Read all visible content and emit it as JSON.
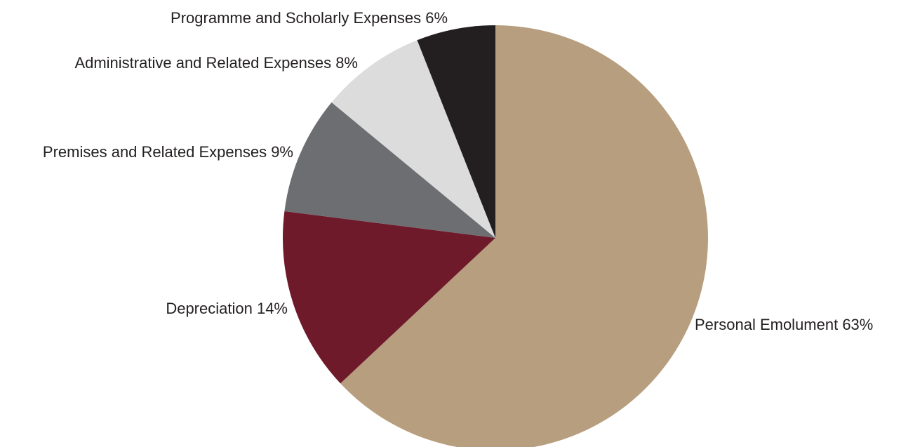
{
  "chart_data": {
    "type": "pie",
    "title": "",
    "start_angle_deg": 0,
    "direction": "clockwise",
    "slices": [
      {
        "label": "Personal Emolument 63%",
        "category": "Personal Emolument",
        "value": 63,
        "color": "#b79e7e"
      },
      {
        "label": "Depreciation 14%",
        "category": "Depreciation",
        "value": 14,
        "color": "#6e1a2b"
      },
      {
        "label": "Premises and Related Expenses 9%",
        "category": "Premises and Related Expenses",
        "value": 9,
        "color": "#6d6e71"
      },
      {
        "label": "Administrative and Related Expenses 8%",
        "category": "Administrative and Related Expenses",
        "value": 8,
        "color": "#dcdcdc"
      },
      {
        "label": "Programme and Scholarly Expenses 6%",
        "category": "Programme and Scholarly Expenses",
        "value": 6,
        "color": "#231f20"
      }
    ],
    "legend": "none",
    "labels": "outside"
  }
}
